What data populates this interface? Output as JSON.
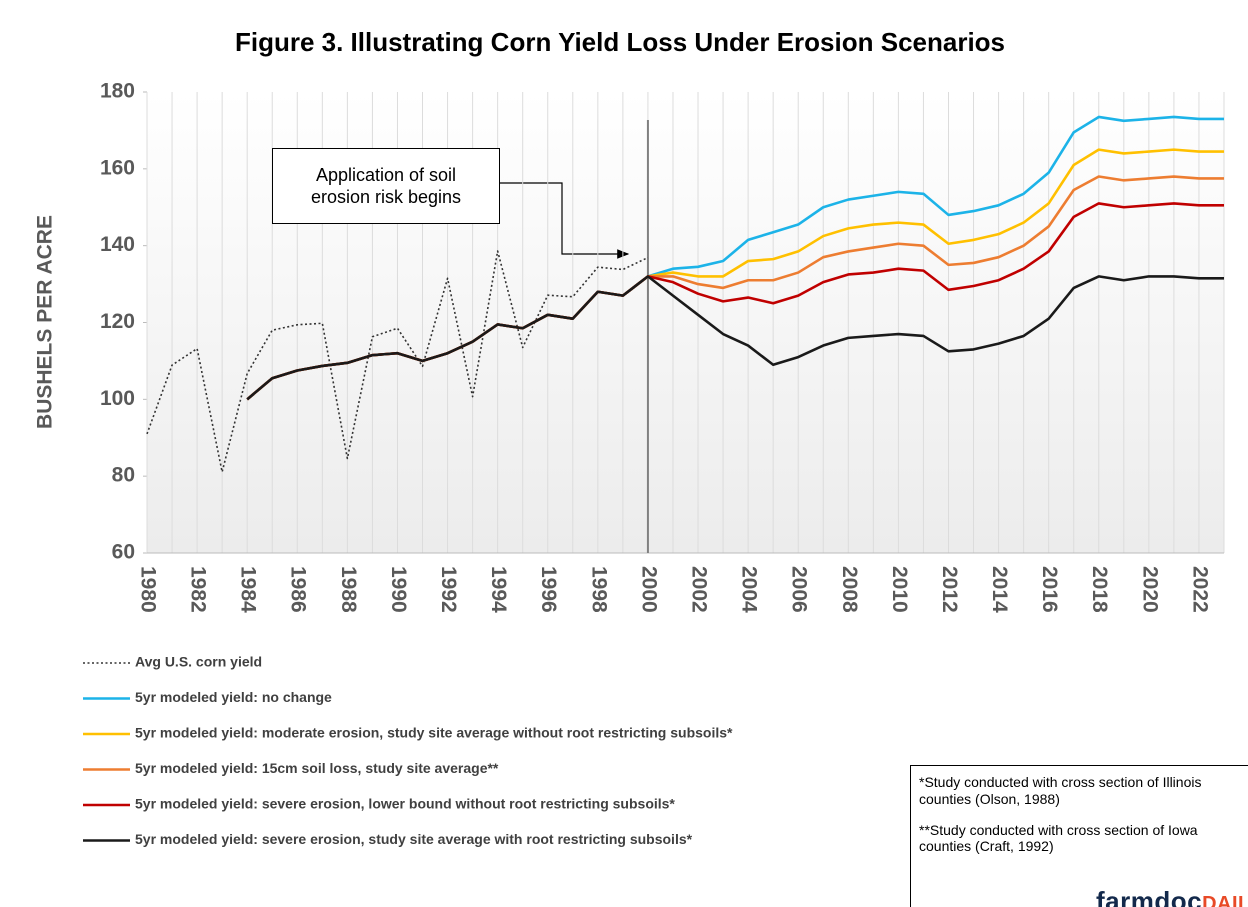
{
  "chart_data": {
    "type": "line",
    "title": "Figure  3. Illustrating Corn Yield Loss Under Erosion Scenarios",
    "y_label": "BUSHELS PER ACRE",
    "annotation": "Application of soil erosion risk begins",
    "footnotes": [
      "*Study conducted with cross section of Illinois counties (Olson, 1988)",
      "**Study conducted with cross section of Iowa counties (Craft, 1992)"
    ],
    "logo": "farmdocDAILY",
    "categories": [
      "1980",
      null,
      "1982",
      null,
      "1984",
      null,
      "1986",
      null,
      "1988",
      null,
      "1990",
      null,
      "1992",
      null,
      "1994",
      null,
      "1996",
      null,
      "1998",
      null,
      "2000",
      null,
      "2002",
      null,
      "2004",
      null,
      "2006",
      null,
      "2008",
      null,
      "2010",
      null,
      "2012",
      null,
      "2014",
      null,
      "2016",
      null,
      "2018",
      null,
      "2020",
      null,
      "2022",
      null
    ],
    "marker_category": "2000",
    "ylim": [
      60,
      180
    ],
    "yticks": [
      60,
      80,
      100,
      120,
      140,
      160,
      180
    ],
    "grid": "vertical",
    "series": [
      {
        "name": "Avg U.S. corn yield",
        "color": "#333333",
        "dash": "dotted",
        "values": [
          91.0,
          108.9,
          113.2,
          81.1,
          106.7,
          118.0,
          119.4,
          119.8,
          84.6,
          116.3,
          118.5,
          108.6,
          131.5,
          100.7,
          138.6,
          113.5,
          127.1,
          126.7,
          134.4,
          133.8,
          136.9,
          null,
          null,
          null,
          null,
          null,
          null,
          null,
          null,
          null,
          null,
          null,
          null,
          null,
          null,
          null,
          null,
          null,
          null,
          null,
          null,
          null,
          null,
          null
        ]
      },
      {
        "name": "5yr modeled yield: no change",
        "color": "#1cb3e8",
        "values": [
          null,
          null,
          null,
          null,
          100,
          105.5,
          107.5,
          108.7,
          109.5,
          111.5,
          112,
          110,
          112,
          115,
          119.5,
          118.5,
          122,
          121,
          128,
          127,
          132,
          134,
          134.5,
          136,
          141.5,
          143.5,
          145.5,
          150,
          152,
          153,
          154,
          153.5,
          148,
          149,
          150.5,
          153.5,
          159,
          169.5,
          173.5,
          172.5,
          173,
          173.5,
          173,
          173
        ]
      },
      {
        "name": "5yr modeled yield: moderate erosion, study site average without root restricting subsoils*",
        "color": "#ffc000",
        "values": [
          null,
          null,
          null,
          null,
          100,
          105.5,
          107.5,
          108.7,
          109.5,
          111.5,
          112,
          110,
          112,
          115,
          119.5,
          118.5,
          122,
          121,
          128,
          127,
          132,
          133,
          132,
          132,
          136,
          136.5,
          138.5,
          142.5,
          144.5,
          145.5,
          146,
          145.5,
          140.5,
          141.5,
          143,
          146,
          151,
          161,
          165,
          164,
          164.5,
          165,
          164.5,
          164.5
        ]
      },
      {
        "name": "5yr modeled yield: 15cm soil loss, study site average**",
        "color": "#ed7d31",
        "values": [
          null,
          null,
          null,
          null,
          100,
          105.5,
          107.5,
          108.7,
          109.5,
          111.5,
          112,
          110,
          112,
          115,
          119.5,
          118.5,
          122,
          121,
          128,
          127,
          132,
          132,
          130,
          129,
          131,
          131,
          133,
          137,
          138.5,
          139.5,
          140.5,
          140,
          135,
          135.5,
          137,
          140,
          145,
          154.5,
          158,
          157,
          157.5,
          158,
          157.5,
          157.5
        ]
      },
      {
        "name": "5yr modeled yield: severe erosion, lower bound without root restricting subsoils*",
        "color": "#c00000",
        "values": [
          null,
          null,
          null,
          null,
          100,
          105.5,
          107.5,
          108.7,
          109.5,
          111.5,
          112,
          110,
          112,
          115,
          119.5,
          118.5,
          122,
          121,
          128,
          127,
          132,
          130.5,
          127.5,
          125.5,
          126.5,
          125,
          127,
          130.5,
          132.5,
          133,
          134,
          133.5,
          128.5,
          129.5,
          131,
          134,
          138.5,
          147.5,
          151,
          150,
          150.5,
          151,
          150.5,
          150.5
        ]
      },
      {
        "name": "5yr modeled yield: severe erosion, study site average with root restricting subsoils*",
        "color": "#1a1a1a",
        "values": [
          null,
          null,
          null,
          null,
          100,
          105.5,
          107.5,
          108.7,
          109.5,
          111.5,
          112,
          110,
          112,
          115,
          119.5,
          118.5,
          122,
          121,
          128,
          127,
          132,
          127,
          122,
          117,
          114,
          109,
          111,
          114,
          116,
          116.5,
          117,
          116.5,
          112.5,
          113,
          114.5,
          116.5,
          121,
          129,
          132,
          131,
          132,
          132,
          131.5,
          131.5
        ]
      }
    ]
  }
}
